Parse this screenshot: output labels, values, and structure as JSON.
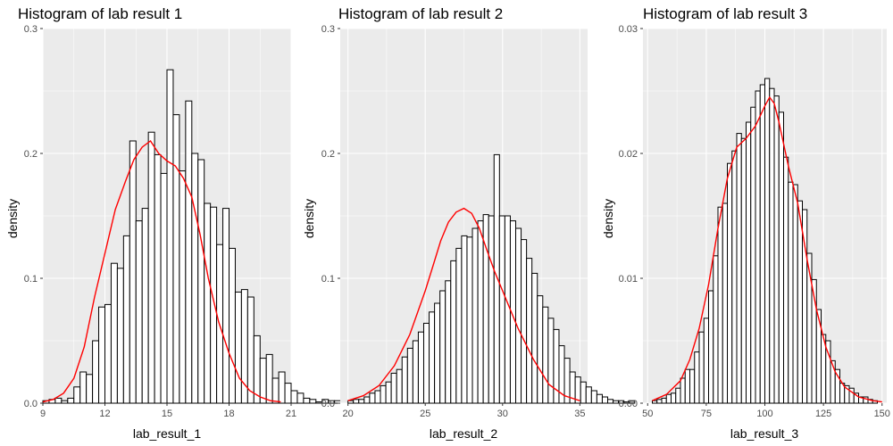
{
  "colors": {
    "density_line": "#ff0000",
    "bar_outline": "#000000",
    "bar_fill": "#ffffff",
    "panel": "#ebebeb"
  },
  "chart_data": [
    {
      "type": "bar",
      "title": "Histogram of lab result 1",
      "xlabel": "lab_result_1",
      "ylabel": "density",
      "xlim": [
        9,
        21
      ],
      "ylim": [
        0,
        0.3
      ],
      "xticks": [
        9,
        12,
        15,
        18,
        21
      ],
      "yticks": [
        0.0,
        0.1,
        0.2,
        0.3
      ],
      "ytick_labels": [
        "0.0",
        "0.1",
        "0.2",
        "0.3"
      ],
      "grid": true,
      "bin_start": 9.0,
      "bin_width": 0.3,
      "values": [
        0.002,
        0.003,
        0.004,
        0.002,
        0.004,
        0.013,
        0.025,
        0.023,
        0.05,
        0.077,
        0.079,
        0.112,
        0.108,
        0.134,
        0.21,
        0.146,
        0.156,
        0.217,
        0.199,
        0.184,
        0.267,
        0.231,
        0.186,
        0.242,
        0.2,
        0.195,
        0.16,
        0.157,
        0.127,
        0.156,
        0.124,
        0.089,
        0.091,
        0.085,
        0.054,
        0.036,
        0.039,
        0.02,
        0.025,
        0.016,
        0.01,
        0.008,
        0.004,
        0.003,
        0.001,
        0.003,
        0.002,
        0.002,
        0.002,
        0.001
      ],
      "density_curve": {
        "x": [
          9.0,
          9.5,
          10.0,
          10.5,
          11.0,
          11.5,
          12.0,
          12.5,
          13.0,
          13.4,
          13.8,
          14.2,
          14.6,
          15.0,
          15.4,
          15.8,
          16.2,
          16.6,
          17.0,
          17.5,
          18.0,
          18.5,
          19.0,
          19.5,
          20.0,
          20.5
        ],
        "y": [
          0.001,
          0.003,
          0.008,
          0.02,
          0.045,
          0.085,
          0.12,
          0.155,
          0.178,
          0.195,
          0.205,
          0.21,
          0.2,
          0.194,
          0.19,
          0.18,
          0.165,
          0.135,
          0.1,
          0.065,
          0.04,
          0.02,
          0.01,
          0.005,
          0.002,
          0.001
        ]
      }
    },
    {
      "type": "bar",
      "title": "Histogram of lab result 2",
      "xlabel": "lab_result_2",
      "ylabel": "density",
      "xlim": [
        19.5,
        35.5
      ],
      "ylim": [
        0,
        0.3
      ],
      "xticks": [
        20,
        25,
        30,
        35
      ],
      "yticks": [
        0.0,
        0.1,
        0.2,
        0.3
      ],
      "ytick_labels": [
        "0.0",
        "0.1",
        "0.2",
        "0.3"
      ],
      "grid": true,
      "bin_start": 20.0,
      "bin_width": 0.35,
      "values": [
        0.002,
        0.003,
        0.003,
        0.005,
        0.008,
        0.01,
        0.014,
        0.017,
        0.024,
        0.027,
        0.037,
        0.044,
        0.05,
        0.057,
        0.064,
        0.073,
        0.08,
        0.09,
        0.098,
        0.114,
        0.124,
        0.134,
        0.133,
        0.14,
        0.146,
        0.151,
        0.15,
        0.199,
        0.15,
        0.15,
        0.146,
        0.14,
        0.131,
        0.116,
        0.104,
        0.086,
        0.077,
        0.068,
        0.059,
        0.046,
        0.036,
        0.025,
        0.021,
        0.017,
        0.013,
        0.01,
        0.007,
        0.005,
        0.003,
        0.002,
        0.002,
        0.001,
        0.002
      ],
      "density_curve": {
        "x": [
          20,
          21,
          22,
          23,
          24,
          25,
          25.5,
          26,
          26.5,
          27,
          27.5,
          28,
          28.5,
          29,
          29.5,
          30,
          30.5,
          31,
          32,
          33,
          34,
          35
        ],
        "y": [
          0.002,
          0.006,
          0.014,
          0.03,
          0.055,
          0.09,
          0.11,
          0.13,
          0.145,
          0.153,
          0.156,
          0.152,
          0.14,
          0.122,
          0.105,
          0.09,
          0.075,
          0.06,
          0.035,
          0.015,
          0.006,
          0.002
        ]
      }
    },
    {
      "type": "bar",
      "title": "Histogram of lab result 3",
      "xlabel": "lab_result_3",
      "ylabel": "density",
      "xlim": [
        48,
        152
      ],
      "ylim": [
        0,
        0.03
      ],
      "xticks": [
        50,
        75,
        100,
        125,
        150
      ],
      "yticks": [
        0.0,
        0.01,
        0.02,
        0.03
      ],
      "ytick_labels": [
        "0.00",
        "0.01",
        "0.02",
        "0.03"
      ],
      "grid": true,
      "bin_start": 52,
      "bin_width": 2,
      "values": [
        0.0002,
        0.0003,
        0.0004,
        0.0007,
        0.0008,
        0.0012,
        0.002,
        0.0027,
        0.0027,
        0.0041,
        0.0057,
        0.0068,
        0.009,
        0.0118,
        0.0157,
        0.016,
        0.0192,
        0.0202,
        0.0216,
        0.0212,
        0.0225,
        0.0237,
        0.025,
        0.0255,
        0.026,
        0.0252,
        0.0246,
        0.0233,
        0.0197,
        0.0177,
        0.0175,
        0.0162,
        0.0155,
        0.012,
        0.0099,
        0.0075,
        0.0055,
        0.005,
        0.0034,
        0.0027,
        0.0016,
        0.0014,
        0.0012,
        0.0008,
        0.0005,
        0.0005,
        0.0003,
        0.0002
      ],
      "density_curve": {
        "x": [
          52,
          58,
          64,
          68,
          72,
          76,
          80,
          84,
          88,
          92,
          96,
          100,
          102,
          104,
          106,
          110,
          114,
          118,
          122,
          126,
          130,
          134,
          140,
          146,
          150
        ],
        "y": [
          0.0002,
          0.0007,
          0.0018,
          0.0035,
          0.006,
          0.0095,
          0.014,
          0.018,
          0.0205,
          0.0212,
          0.0222,
          0.0238,
          0.0245,
          0.024,
          0.0225,
          0.019,
          0.016,
          0.0115,
          0.0075,
          0.0045,
          0.0025,
          0.0013,
          0.0005,
          0.0002,
          0.0001
        ]
      }
    }
  ]
}
